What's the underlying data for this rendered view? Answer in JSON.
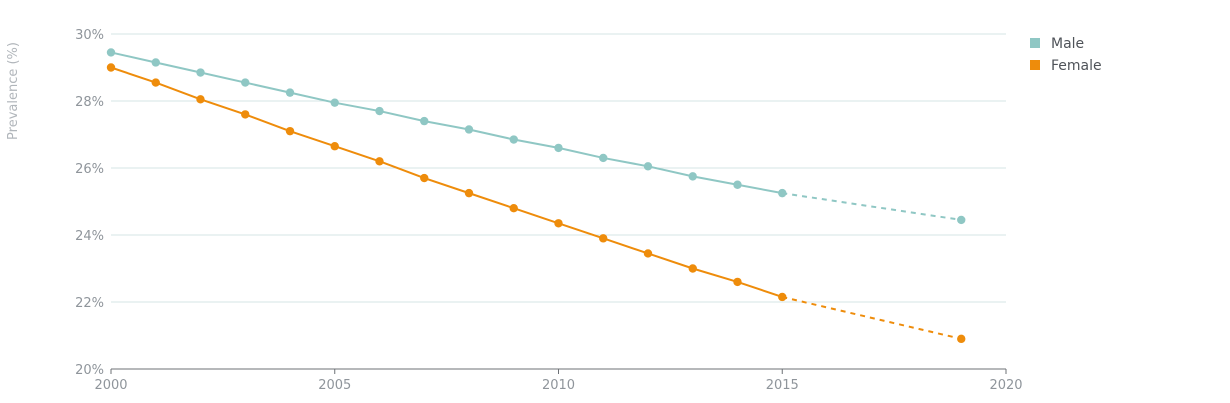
{
  "chart_data": {
    "type": "line",
    "ylabel": "Prevalence (%)",
    "xlim": [
      2000,
      2020
    ],
    "ylim": [
      20,
      30
    ],
    "x_ticks": [
      {
        "value": 2000,
        "label": "2000"
      },
      {
        "value": 2005,
        "label": "2005"
      },
      {
        "value": 2010,
        "label": "2010"
      },
      {
        "value": 2015,
        "label": "2015"
      },
      {
        "value": 2020,
        "label": "2020"
      }
    ],
    "y_ticks": [
      {
        "value": 20,
        "label": "20%"
      },
      {
        "value": 22,
        "label": "22%"
      },
      {
        "value": 24,
        "label": "24%"
      },
      {
        "value": 26,
        "label": "26%"
      },
      {
        "value": 28,
        "label": "28%"
      },
      {
        "value": 30,
        "label": "30%"
      }
    ],
    "grid": true,
    "legend_position": "top-right",
    "projection_from": 2015,
    "series": [
      {
        "name": "Male",
        "color": "#8fc7c4",
        "x": [
          2000,
          2001,
          2002,
          2003,
          2004,
          2005,
          2006,
          2007,
          2008,
          2009,
          2010,
          2011,
          2012,
          2013,
          2014,
          2015,
          2019
        ],
        "y": [
          29.45,
          29.15,
          28.85,
          28.55,
          28.25,
          27.95,
          27.7,
          27.4,
          27.15,
          26.85,
          26.6,
          26.3,
          26.05,
          25.75,
          25.5,
          25.25,
          24.45
        ]
      },
      {
        "name": "Female",
        "color": "#ee8c0b",
        "x": [
          2000,
          2001,
          2002,
          2003,
          2004,
          2005,
          2006,
          2007,
          2008,
          2009,
          2010,
          2011,
          2012,
          2013,
          2014,
          2015,
          2019
        ],
        "y": [
          29.0,
          28.55,
          28.05,
          27.6,
          27.1,
          26.65,
          26.2,
          25.7,
          25.25,
          24.8,
          24.35,
          23.9,
          23.45,
          23.0,
          22.6,
          22.15,
          20.9
        ]
      }
    ]
  }
}
